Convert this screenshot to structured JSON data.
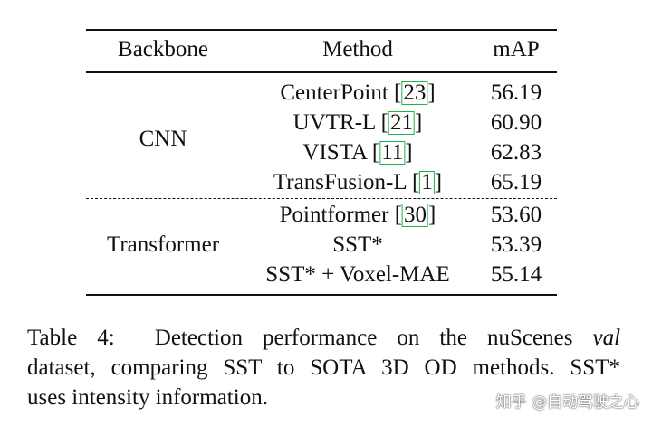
{
  "table": {
    "headers": {
      "backbone": "Backbone",
      "method": "Method",
      "map": "mAP"
    },
    "groups": [
      {
        "backbone": "CNN",
        "rows": [
          {
            "method": "CenterPoint",
            "cite": "23",
            "map": "56.19"
          },
          {
            "method": "UVTR-L",
            "cite": "21",
            "map": "60.90"
          },
          {
            "method": "VISTA",
            "cite": "11",
            "map": "62.83"
          },
          {
            "method": "TransFusion-L",
            "cite": "1",
            "map": "65.19"
          }
        ]
      },
      {
        "backbone": "Transformer",
        "rows": [
          {
            "method": "Pointformer",
            "cite": "30",
            "map": "53.60"
          },
          {
            "method": "SST*",
            "map": "53.39"
          },
          {
            "method": "SST* + Voxel-MAE",
            "map": "55.14"
          }
        ]
      }
    ]
  },
  "caption": {
    "label": "Table 4:",
    "text_before_val": "Detection performance on the nuScenes",
    "val": "val",
    "line2": "dataset, comparing SST to SOTA 3D OD methods.  SST*",
    "line3": "uses intensity information."
  },
  "watermark": "知乎 @自动驾驶之心",
  "colors": {
    "text": "#111111",
    "cite_box": "#22b14c",
    "background": "#ffffff"
  }
}
